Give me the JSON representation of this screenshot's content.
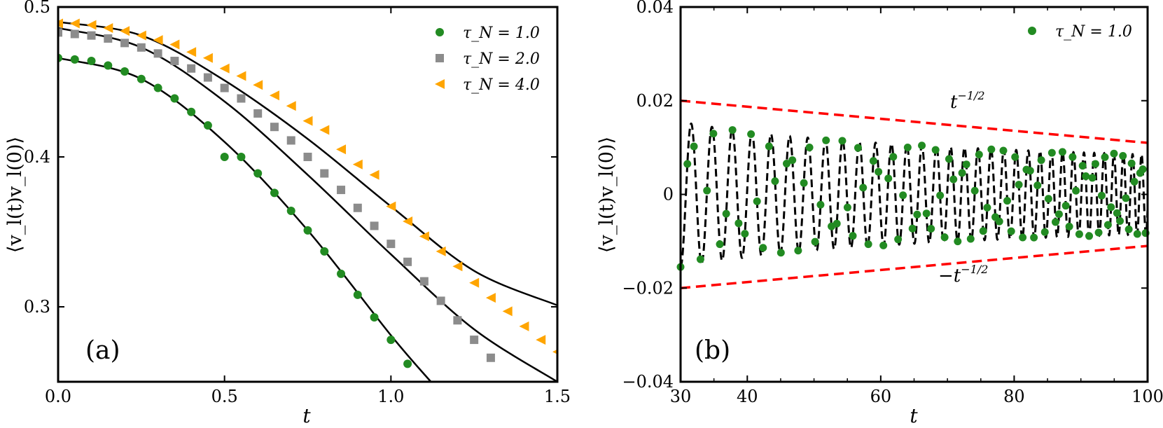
{
  "chart_data": [
    {
      "type": "scatter",
      "panel_label": "(a)",
      "xlabel": "t",
      "ylabel": "⟨v_l(t)v_l(0)⟩",
      "xlim": [
        0.0,
        1.5
      ],
      "ylim": [
        0.25,
        0.5
      ],
      "xticks": [
        0.0,
        0.5,
        1.0,
        1.5
      ],
      "xtick_labels": [
        "0.0",
        "0.5",
        "1.0",
        "1.5"
      ],
      "yticks": [
        0.3,
        0.4,
        0.5
      ],
      "ytick_labels": [
        "0.3",
        "0.4",
        "0.5"
      ],
      "legend_position": "top-right",
      "series": [
        {
          "name": "τ_N = 1.0",
          "marker": "circle",
          "color": "#228b22",
          "x": [
            0.0,
            0.05,
            0.1,
            0.15,
            0.2,
            0.25,
            0.3,
            0.35,
            0.4,
            0.45,
            0.5,
            0.55,
            0.6,
            0.65,
            0.7,
            0.75,
            0.8,
            0.85,
            0.9,
            0.95,
            1.0,
            1.05
          ],
          "y": [
            0.466,
            0.465,
            0.464,
            0.461,
            0.457,
            0.452,
            0.446,
            0.439,
            0.43,
            0.421,
            0.4,
            0.4,
            0.389,
            0.376,
            0.364,
            0.351,
            0.337,
            0.322,
            0.308,
            0.293,
            0.278,
            0.262
          ],
          "fit": {
            "x": [
              0.0,
              0.25,
              0.5,
              0.75,
              1.0,
              1.12
            ],
            "y": [
              0.466,
              0.452,
              0.41,
              0.351,
              0.281,
              0.25
            ]
          }
        },
        {
          "name": "τ_N = 2.0",
          "marker": "square",
          "color": "#8c8c8c",
          "x": [
            0.0,
            0.05,
            0.1,
            0.15,
            0.2,
            0.25,
            0.3,
            0.35,
            0.4,
            0.45,
            0.5,
            0.55,
            0.6,
            0.65,
            0.7,
            0.75,
            0.8,
            0.85,
            0.9,
            0.95,
            1.0,
            1.05,
            1.1,
            1.15,
            1.2,
            1.25,
            1.3
          ],
          "y": [
            0.483,
            0.482,
            0.481,
            0.479,
            0.476,
            0.473,
            0.469,
            0.464,
            0.459,
            0.453,
            0.446,
            0.439,
            0.429,
            0.42,
            0.411,
            0.4,
            0.389,
            0.378,
            0.366,
            0.354,
            0.342,
            0.33,
            0.317,
            0.304,
            0.291,
            0.278,
            0.266
          ],
          "fit": {
            "x": [
              0.0,
              0.25,
              0.5,
              0.75,
              1.0,
              1.25,
              1.5
            ],
            "y": [
              0.486,
              0.473,
              0.437,
              0.388,
              0.335,
              0.285,
              0.25
            ]
          }
        },
        {
          "name": "τ_N = 4.0",
          "marker": "triangle-left",
          "color": "#ffa500",
          "x": [
            0.0,
            0.05,
            0.1,
            0.15,
            0.2,
            0.25,
            0.3,
            0.35,
            0.4,
            0.45,
            0.5,
            0.55,
            0.6,
            0.65,
            0.7,
            0.75,
            0.8,
            0.85,
            0.9,
            0.95,
            1.0,
            1.05,
            1.1,
            1.15,
            1.2,
            1.25,
            1.3,
            1.35,
            1.4,
            1.45,
            1.5
          ],
          "y": [
            0.489,
            0.489,
            0.488,
            0.486,
            0.484,
            0.481,
            0.478,
            0.475,
            0.47,
            0.466,
            0.459,
            0.454,
            0.448,
            0.441,
            0.434,
            0.424,
            0.418,
            0.405,
            0.395,
            0.388,
            0.367,
            0.357,
            0.347,
            0.337,
            0.327,
            0.316,
            0.306,
            0.297,
            0.287,
            0.278,
            0.27
          ],
          "fit": {
            "x": [
              0.0,
              0.25,
              0.5,
              0.75,
              1.0,
              1.25,
              1.5
            ],
            "y": [
              0.49,
              0.481,
              0.451,
              0.412,
              0.367,
              0.324,
              0.301
            ]
          }
        }
      ]
    },
    {
      "type": "line",
      "panel_label": "(b)",
      "xlabel": "t",
      "ylabel": "⟨v_l(t)v_l(0)⟩",
      "xlim": [
        30,
        100
      ],
      "ylim": [
        -0.04,
        0.04
      ],
      "xticks": [
        30,
        40,
        60,
        80,
        100
      ],
      "xtick_labels": [
        "30",
        "40",
        "60",
        "80",
        "100"
      ],
      "yticks": [
        -0.04,
        -0.02,
        0,
        0.02,
        0.04
      ],
      "ytick_labels": [
        "−0.04",
        "−0.02",
        "0",
        "0.02",
        "0.04"
      ],
      "legend_position": "top-right",
      "legend_label": "τ_N = 1.0",
      "series_color": "#228b22",
      "oscillation_model": {
        "amplitude": 0.0155,
        "start_t": 30,
        "period_start": 3.2,
        "period_end": 1.3,
        "decay_exponent": -0.5
      },
      "envelope": {
        "upper_label": "t",
        "upper_exponent": "−1/2",
        "lower_label": "−t",
        "lower_exponent": "−1/2",
        "upper": {
          "x": [
            30,
            100
          ],
          "y": [
            0.02,
            0.011
          ]
        },
        "lower": {
          "x": [
            30,
            100
          ],
          "y": [
            -0.02,
            -0.011
          ]
        },
        "color": "#ff0000"
      }
    }
  ]
}
